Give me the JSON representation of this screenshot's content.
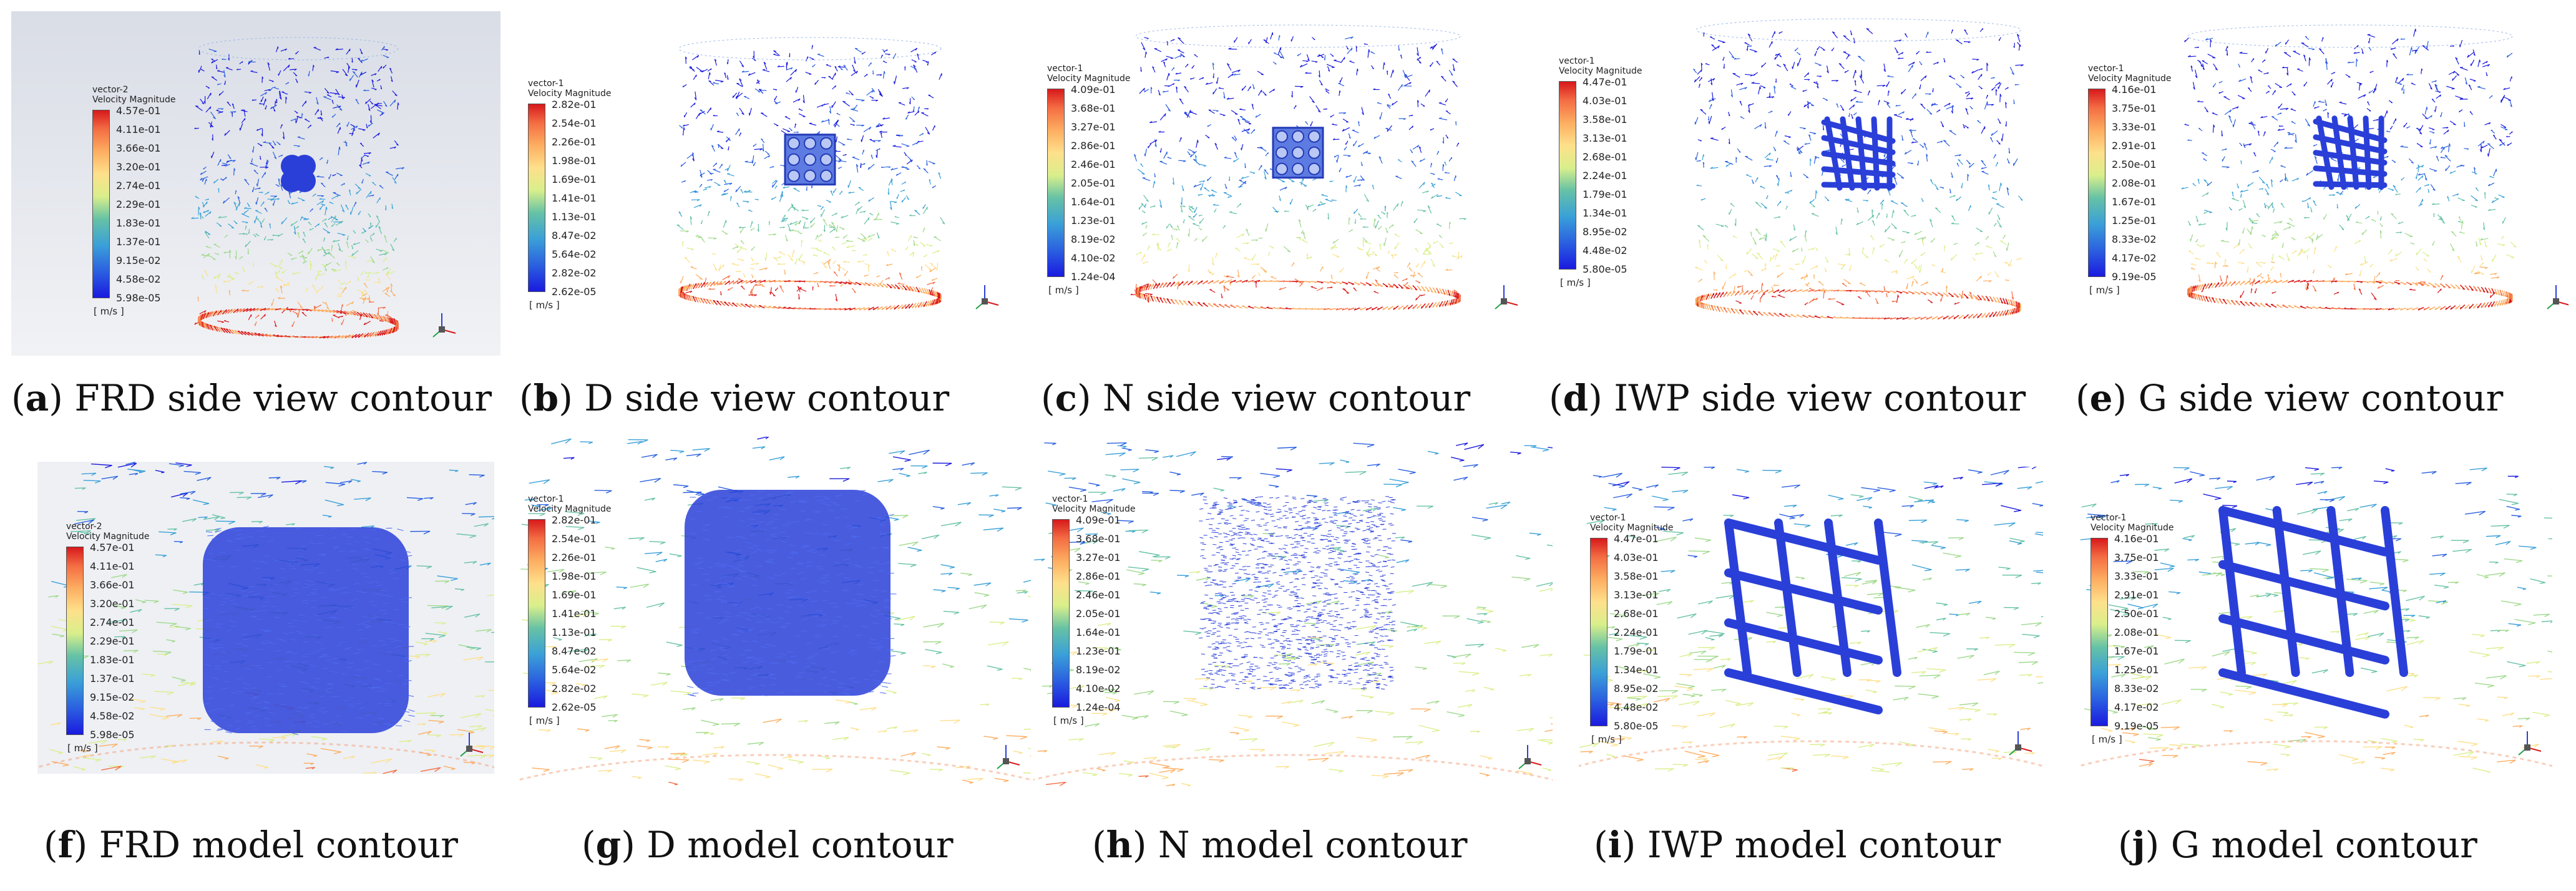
{
  "panels": [
    {
      "id": "a",
      "bold": "a",
      "label": "FRD side view contour",
      "legend": {
        "title": "vector-2",
        "subtitle": "Velocity Magnitude",
        "ticks": [
          "4.57e-01",
          "4.11e-01",
          "3.66e-01",
          "3.20e-01",
          "2.74e-01",
          "2.29e-01",
          "1.83e-01",
          "1.37e-01",
          "9.15e-02",
          "4.58e-02",
          "5.98e-05"
        ],
        "unit": "[ m/s ]"
      }
    },
    {
      "id": "b",
      "bold": "b",
      "label": "D side view contour",
      "legend": {
        "title": "vector-1",
        "subtitle": "Velocity Magnitude",
        "ticks": [
          "2.82e-01",
          "2.54e-01",
          "2.26e-01",
          "1.98e-01",
          "1.69e-01",
          "1.41e-01",
          "1.13e-01",
          "8.47e-02",
          "5.64e-02",
          "2.82e-02",
          "2.62e-05"
        ],
        "unit": "[ m/s ]"
      }
    },
    {
      "id": "c",
      "bold": "c",
      "label": "N side view contour",
      "legend": {
        "title": "vector-1",
        "subtitle": "Velocity Magnitude",
        "ticks": [
          "4.09e-01",
          "3.68e-01",
          "3.27e-01",
          "2.86e-01",
          "2.46e-01",
          "2.05e-01",
          "1.64e-01",
          "1.23e-01",
          "8.19e-02",
          "4.10e-02",
          "1.24e-04"
        ],
        "unit": "[ m/s ]"
      }
    },
    {
      "id": "d",
      "bold": "d",
      "label": "IWP side view contour",
      "legend": {
        "title": "vector-1",
        "subtitle": "Velocity Magnitude",
        "ticks": [
          "4.47e-01",
          "4.03e-01",
          "3.58e-01",
          "3.13e-01",
          "2.68e-01",
          "2.24e-01",
          "1.79e-01",
          "1.34e-01",
          "8.95e-02",
          "4.48e-02",
          "5.80e-05"
        ],
        "unit": "[ m/s ]"
      }
    },
    {
      "id": "e",
      "bold": "e",
      "label": "G side view contour",
      "legend": {
        "title": "vector-1",
        "subtitle": "Velocity Magnitude",
        "ticks": [
          "4.16e-01",
          "3.75e-01",
          "3.33e-01",
          "2.91e-01",
          "2.50e-01",
          "2.08e-01",
          "1.67e-01",
          "1.25e-01",
          "8.33e-02",
          "4.17e-02",
          "9.19e-05"
        ],
        "unit": "[ m/s ]"
      }
    },
    {
      "id": "f",
      "bold": "f",
      "label": "FRD model contour",
      "legend": {
        "title": "vector-2",
        "subtitle": "Velocity Magnitude",
        "ticks": [
          "4.57e-01",
          "4.11e-01",
          "3.66e-01",
          "3.20e-01",
          "2.74e-01",
          "2.29e-01",
          "1.83e-01",
          "1.37e-01",
          "9.15e-02",
          "4.58e-02",
          "5.98e-05"
        ],
        "unit": "[ m/s ]"
      }
    },
    {
      "id": "g",
      "bold": "g",
      "label": "D model contour",
      "legend": {
        "title": "vector-1",
        "subtitle": "Velocity Magnitude",
        "ticks": [
          "2.82e-01",
          "2.54e-01",
          "2.26e-01",
          "1.98e-01",
          "1.69e-01",
          "1.41e-01",
          "1.13e-01",
          "8.47e-02",
          "5.64e-02",
          "2.82e-02",
          "2.62e-05"
        ],
        "unit": "[ m/s ]"
      }
    },
    {
      "id": "h",
      "bold": "h",
      "label": "N model contour",
      "legend": {
        "title": "vector-1",
        "subtitle": "Velocity Magnitude",
        "ticks": [
          "4.09e-01",
          "3.68e-01",
          "3.27e-01",
          "2.86e-01",
          "2.46e-01",
          "2.05e-01",
          "1.64e-01",
          "1.23e-01",
          "8.19e-02",
          "4.10e-02",
          "1.24e-04"
        ],
        "unit": "[ m/s ]"
      }
    },
    {
      "id": "i",
      "bold": "i",
      "label": "IWP model contour",
      "legend": {
        "title": "vector-1",
        "subtitle": "Velocity Magnitude",
        "ticks": [
          "4.47e-01",
          "4.03e-01",
          "3.58e-01",
          "3.13e-01",
          "2.68e-01",
          "2.24e-01",
          "1.79e-01",
          "1.34e-01",
          "8.95e-02",
          "4.48e-02",
          "5.80e-05"
        ],
        "unit": "[ m/s ]"
      }
    },
    {
      "id": "j",
      "bold": "j",
      "label": "G model contour",
      "legend": {
        "title": "vector-1",
        "subtitle": "Velocity Magnitude",
        "ticks": [
          "4.16e-01",
          "3.75e-01",
          "3.33e-01",
          "2.91e-01",
          "2.50e-01",
          "2.08e-01",
          "1.67e-01",
          "1.25e-01",
          "8.33e-02",
          "4.17e-02",
          "9.19e-05"
        ],
        "unit": "[ m/s ]"
      }
    }
  ],
  "colors": {
    "max": "#d7191c",
    "mid": "#d9ef8b",
    "min": "#1a1adf",
    "model": "#2a3fd8",
    "panel_bg_a": "#e6e9ef",
    "panel_bg": "#ffffff"
  }
}
